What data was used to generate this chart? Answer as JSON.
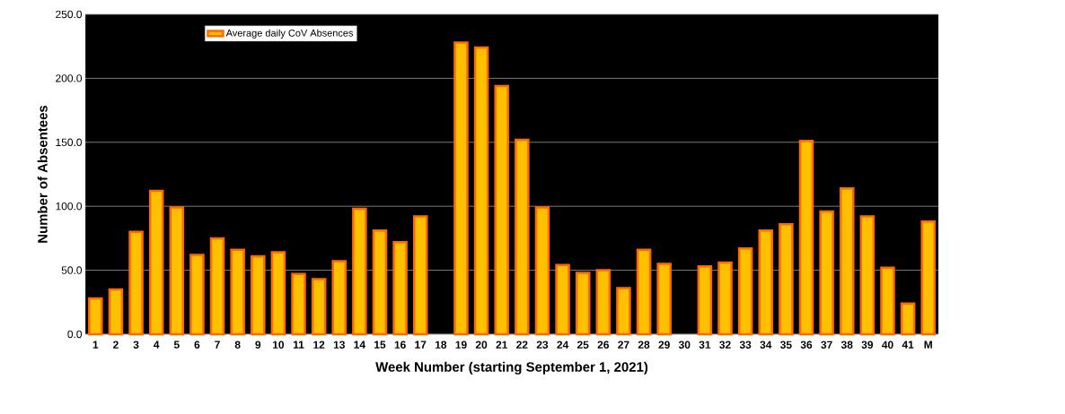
{
  "chart_data": {
    "type": "bar",
    "xlabel": "Week Number (starting September 1, 2021)",
    "ylabel": "Number of Absentees",
    "categories": [
      "1",
      "2",
      "3",
      "4",
      "5",
      "6",
      "7",
      "8",
      "9",
      "10",
      "11",
      "12",
      "13",
      "14",
      "15",
      "16",
      "17",
      "18",
      "19",
      "20",
      "21",
      "22",
      "23",
      "24",
      "25",
      "26",
      "27",
      "28",
      "29",
      "30",
      "31",
      "32",
      "33",
      "34",
      "35",
      "36",
      "37",
      "38",
      "39",
      "40",
      "41",
      "M"
    ],
    "series": [
      {
        "name": "Average daily CoV Absences",
        "color": "#ffc000",
        "values": [
          28,
          35,
          80,
          112,
          99,
          62,
          75,
          66,
          61,
          64,
          47,
          43,
          57,
          98,
          81,
          72,
          92,
          null,
          228,
          224,
          194,
          152,
          99,
          54,
          48,
          50,
          36,
          66,
          55,
          null,
          53,
          56,
          67,
          81,
          86,
          151,
          96,
          114,
          92,
          52,
          24,
          88
        ]
      }
    ],
    "ylim": [
      0,
      250
    ],
    "yticks": [
      {
        "value": 0,
        "label": "0.0"
      },
      {
        "value": 50,
        "label": "50.0"
      },
      {
        "value": 100,
        "label": "100.0"
      },
      {
        "value": 150,
        "label": "150.0"
      },
      {
        "value": 200,
        "label": "200.0"
      },
      {
        "value": 250,
        "label": "250.0"
      }
    ],
    "grid": "y",
    "legend": "top left"
  }
}
